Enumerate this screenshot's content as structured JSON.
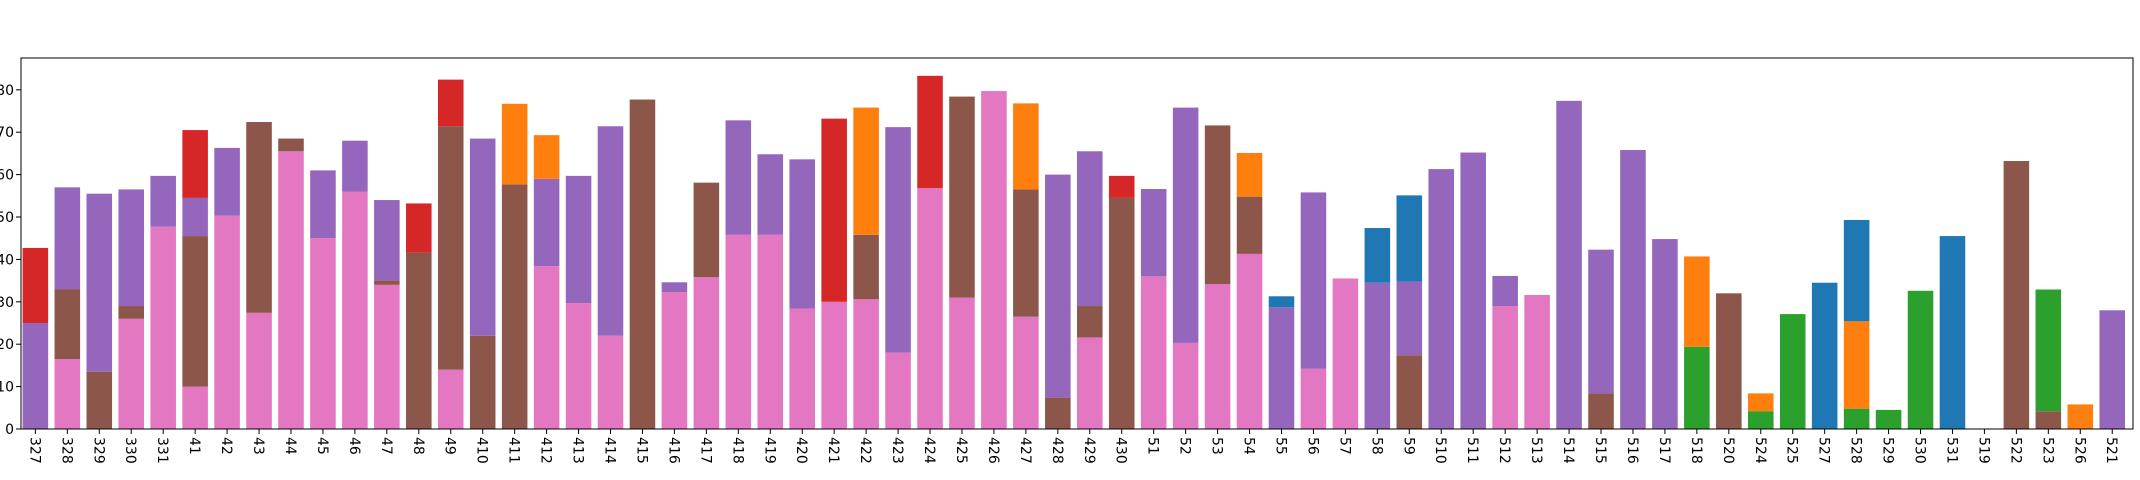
{
  "chart_data": {
    "type": "stacked_bar",
    "categories": [
      "327",
      "328",
      "329",
      "330",
      "331",
      "41",
      "42",
      "43",
      "44",
      "45",
      "46",
      "47",
      "48",
      "49",
      "410",
      "411",
      "412",
      "413",
      "414",
      "415",
      "416",
      "417",
      "418",
      "419",
      "420",
      "421",
      "422",
      "423",
      "424",
      "425",
      "426",
      "427",
      "428",
      "429",
      "430",
      "51",
      "52",
      "53",
      "54",
      "55",
      "56",
      "57",
      "58",
      "59",
      "510",
      "511",
      "512",
      "513",
      "514",
      "515",
      "516",
      "517",
      "518",
      "520",
      "524",
      "525",
      "527",
      "528",
      "529",
      "530",
      "531",
      "519",
      "522",
      "523",
      "526",
      "521"
    ],
    "series": [
      {
        "color": "#e377c2",
        "values": [
          0,
          16.5,
          0,
          26,
          47.7,
          10,
          50.3,
          27.4,
          65.5,
          45,
          56,
          34,
          0,
          14,
          0,
          0,
          38.4,
          29.7,
          22,
          0,
          32.3,
          35.8,
          45.8,
          45.8,
          28.4,
          30,
          30.6,
          18,
          56.8,
          31,
          79.7,
          26.5,
          0,
          21.6,
          0,
          36,
          20.3,
          34.2,
          41.3,
          0,
          14.2,
          35.5,
          0,
          0,
          0,
          0,
          29,
          31.6,
          0,
          0,
          0,
          0,
          0,
          0,
          0,
          0,
          0,
          0,
          0,
          0,
          0,
          0,
          0,
          0,
          0,
          0
        ]
      },
      {
        "color": "#8c564b",
        "values": [
          0,
          16.5,
          13.5,
          3,
          0,
          35.5,
          0,
          45,
          3,
          0,
          0,
          1,
          41.6,
          57.4,
          22,
          57.7,
          0,
          0,
          0,
          77.7,
          0,
          22.3,
          0,
          0,
          0,
          0,
          15.2,
          0,
          0,
          47.4,
          0,
          30,
          7.4,
          7.4,
          54.5,
          0,
          0,
          37.4,
          13.5,
          0,
          0,
          0,
          0,
          17.4,
          0,
          0,
          0,
          0,
          0,
          8.4,
          0,
          0,
          0,
          32,
          0,
          0,
          0,
          0,
          0,
          0,
          0,
          0,
          63.2,
          4.2,
          0,
          0
        ]
      },
      {
        "color": "#2ca02c",
        "values": [
          0,
          0,
          0,
          0,
          0,
          0,
          0,
          0,
          0,
          0,
          0,
          0,
          0,
          0,
          0,
          0,
          0,
          0,
          0,
          0,
          0,
          0,
          0,
          0,
          0,
          0,
          0,
          0,
          0,
          0,
          0,
          0,
          0,
          0,
          0,
          0,
          0,
          0,
          0,
          0,
          0,
          0,
          0,
          0,
          0,
          0,
          0,
          0,
          0,
          0,
          0,
          0,
          19.4,
          0,
          4.2,
          27.1,
          0,
          4.8,
          4.5,
          32.6,
          0,
          0,
          0,
          28.7,
          0,
          0
        ]
      },
      {
        "color": "#9467bd",
        "values": [
          25,
          24,
          42,
          27.5,
          12,
          9,
          16,
          0,
          0,
          16,
          12,
          19,
          0,
          0,
          46.5,
          0,
          20.6,
          30,
          49.4,
          0,
          2.3,
          0,
          27,
          19,
          35.2,
          0,
          0,
          53.2,
          0,
          0,
          0,
          0,
          52.6,
          36.5,
          0,
          20.6,
          55.5,
          0,
          0,
          28.7,
          41.6,
          0,
          34.5,
          17.4,
          61.3,
          65.2,
          7.1,
          0,
          77.4,
          33.9,
          65.8,
          44.8,
          0,
          0,
          0,
          0,
          0,
          0,
          0,
          0,
          0,
          0,
          0,
          0,
          0,
          28
        ]
      },
      {
        "color": "#ff7f0e",
        "values": [
          0,
          0,
          0,
          0,
          0,
          0,
          0,
          0,
          0,
          0,
          0,
          0,
          0,
          0,
          0,
          19,
          10.3,
          0,
          0,
          0,
          0,
          0,
          0,
          0,
          0,
          0,
          30,
          0,
          0,
          0,
          0,
          20.3,
          0,
          0,
          0,
          0,
          0,
          0,
          10.3,
          0,
          0,
          0,
          0,
          0,
          0,
          0,
          0,
          0,
          0,
          0,
          0,
          0,
          21.3,
          0,
          4.2,
          0,
          0,
          20.6,
          0,
          0,
          0,
          0,
          0,
          0,
          5.8,
          0
        ]
      },
      {
        "color": "#d62728",
        "values": [
          17.7,
          0,
          0,
          0,
          0,
          16,
          0,
          0,
          0,
          0,
          0,
          0,
          11.6,
          11,
          0,
          0,
          0,
          0,
          0,
          0,
          0,
          0,
          0,
          0,
          0,
          43.2,
          0,
          0,
          26.5,
          0,
          0,
          0,
          0,
          0,
          5.2,
          0,
          0,
          0,
          0,
          0,
          0,
          0,
          0,
          0,
          0,
          0,
          0,
          0,
          0,
          0,
          0,
          0,
          0,
          0,
          0,
          0,
          0,
          0,
          0,
          0,
          0,
          0,
          0,
          0,
          0,
          0
        ]
      },
      {
        "color": "#1f77b4",
        "values": [
          0,
          0,
          0,
          0,
          0,
          0,
          0,
          0,
          0,
          0,
          0,
          0,
          0,
          0,
          0,
          0,
          0,
          0,
          0,
          0,
          0,
          0,
          0,
          0,
          0,
          0,
          0,
          0,
          0,
          0,
          0,
          0,
          0,
          0,
          0,
          0,
          0,
          0,
          0,
          2.6,
          0,
          0,
          12.9,
          20.3,
          0,
          0,
          0,
          0,
          0,
          0,
          0,
          0,
          0,
          0,
          0,
          0,
          34.5,
          23.9,
          0,
          0,
          45.5,
          0,
          0,
          0,
          0,
          0
        ]
      }
    ],
    "ylim": [
      0,
      87.5
    ],
    "yticks": [
      0,
      10,
      20,
      30,
      40,
      50,
      60,
      70,
      80
    ]
  }
}
